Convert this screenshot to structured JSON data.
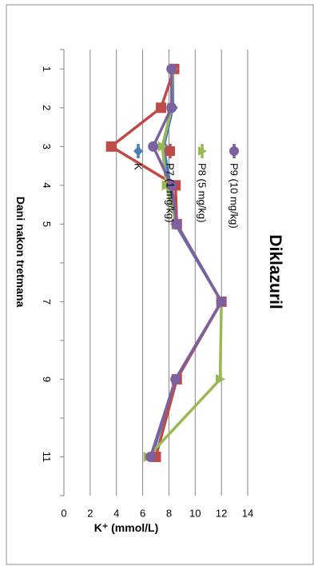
{
  "chart_data": {
    "type": "line",
    "title": "Diklazuril",
    "xlabel": "Dani nakon tretmana",
    "ylabel": "K⁺ (mmol/L)",
    "x": [
      1,
      2,
      3,
      4,
      5,
      7,
      9,
      11
    ],
    "xlim": [
      0.5,
      12
    ],
    "ylim": [
      0,
      14
    ],
    "yticks": [
      0,
      2,
      4,
      6,
      8,
      10,
      12,
      14
    ],
    "grid": true,
    "legend_position": "right",
    "series": [
      {
        "name": "K",
        "color": "#4a7ebb",
        "marker": "diamond",
        "values": [
          8.3,
          8.3,
          7.6,
          8.1,
          8.5,
          12.0,
          8.5,
          6.7
        ]
      },
      {
        "name": "P7 (1 mg/kg)",
        "color": "#be4b48",
        "marker": "square",
        "values": [
          8.4,
          7.4,
          3.6,
          8.5,
          8.6,
          12.0,
          8.6,
          7.0
        ]
      },
      {
        "name": "P8 (5 mg/kg)",
        "color": "#98b954",
        "marker": "triangle",
        "values": [
          8.3,
          8.2,
          7.5,
          7.8,
          8.6,
          12.0,
          11.9,
          6.4
        ]
      },
      {
        "name": "P9 (10 mg/kg)",
        "color": "#7d60a0",
        "marker": "circle",
        "values": [
          8.2,
          8.2,
          6.8,
          8.2,
          8.6,
          12.0,
          8.5,
          6.6
        ]
      }
    ]
  }
}
